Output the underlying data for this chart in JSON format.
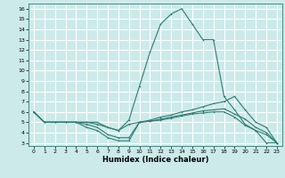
{
  "xlabel": "Humidex (Indice chaleur)",
  "bg_color": "#cceaea",
  "grid_color": "#ffffff",
  "line_color": "#2e7d6e",
  "xlim_min": -0.5,
  "xlim_max": 23.5,
  "ylim_min": 2.7,
  "ylim_max": 16.5,
  "xticks": [
    0,
    1,
    2,
    3,
    4,
    5,
    6,
    7,
    8,
    9,
    10,
    11,
    12,
    13,
    14,
    15,
    16,
    17,
    18,
    19,
    20,
    21,
    22,
    23
  ],
  "yticks": [
    3,
    4,
    5,
    6,
    7,
    8,
    9,
    10,
    11,
    12,
    13,
    14,
    15,
    16
  ],
  "lines": [
    {
      "x": [
        0,
        1,
        2,
        3,
        4,
        5,
        6,
        7,
        8,
        9,
        10,
        11,
        12,
        13,
        14,
        15,
        16,
        17,
        18,
        19,
        20,
        21,
        22,
        23
      ],
      "y": [
        6,
        5,
        5,
        5,
        5,
        5,
        5,
        4.5,
        4.2,
        5.2,
        8.5,
        11.8,
        14.5,
        15.5,
        16,
        14.5,
        13,
        13,
        7.5,
        6.2,
        4.8,
        4.2,
        3.0,
        3.0
      ]
    },
    {
      "x": [
        0,
        1,
        2,
        3,
        4,
        5,
        6,
        7,
        8,
        9,
        10,
        11,
        12,
        13,
        14,
        15,
        16,
        17,
        18,
        19,
        20,
        21,
        22,
        23
      ],
      "y": [
        6,
        5,
        5,
        5,
        5,
        5,
        4.8,
        4.5,
        4.2,
        4.8,
        5.0,
        5.2,
        5.5,
        5.7,
        6.0,
        6.2,
        6.5,
        6.8,
        7.0,
        7.5,
        6.2,
        5.0,
        4.5,
        3.0
      ]
    },
    {
      "x": [
        0,
        1,
        2,
        3,
        4,
        5,
        6,
        7,
        8,
        9,
        10,
        11,
        12,
        13,
        14,
        15,
        16,
        17,
        18,
        19,
        20,
        21,
        22,
        23
      ],
      "y": [
        6,
        5,
        5,
        5,
        5,
        4.8,
        4.5,
        3.8,
        3.5,
        3.5,
        5.0,
        5.1,
        5.3,
        5.5,
        5.7,
        5.9,
        6.1,
        6.2,
        6.3,
        5.8,
        5.3,
        4.5,
        4.0,
        3.0
      ]
    },
    {
      "x": [
        0,
        1,
        2,
        3,
        4,
        5,
        6,
        7,
        8,
        9,
        10,
        11,
        12,
        13,
        14,
        15,
        16,
        17,
        18,
        19,
        20,
        21,
        22,
        23
      ],
      "y": [
        6,
        5,
        5,
        5,
        5,
        4.5,
        4.2,
        3.5,
        3.2,
        3.2,
        5.0,
        5.1,
        5.2,
        5.4,
        5.6,
        5.8,
        5.9,
        6.0,
        6.0,
        5.5,
        4.7,
        4.2,
        3.8,
        3.0
      ]
    }
  ]
}
